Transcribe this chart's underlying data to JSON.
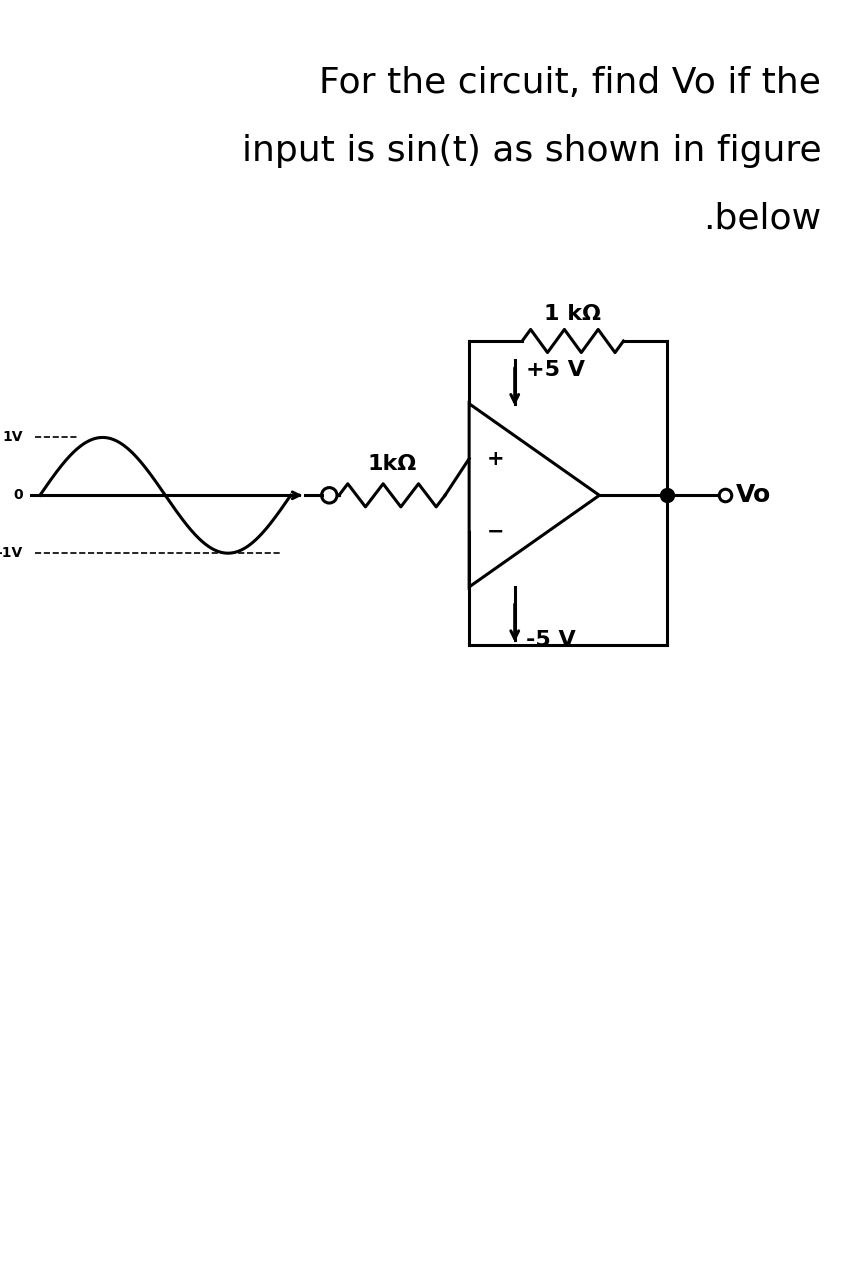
{
  "title_line1": "For the circuit, find Vo if the",
  "title_line2": "input is sin(t) as shown in figure",
  "title_line3": ".below",
  "title_fontsize": 26,
  "background_color": "#ffffff",
  "text_color": "#000000",
  "line_width": 2.2,
  "resistor_label_feedback": "1 kΩ",
  "resistor_label_input": "1kΩ",
  "vplus_label": "+5 V",
  "vminus_label": "-5 V",
  "vo_label": "Vo",
  "sin_label_1v": "1V",
  "sin_label_0": "0",
  "sin_label_m1v": "-1V"
}
